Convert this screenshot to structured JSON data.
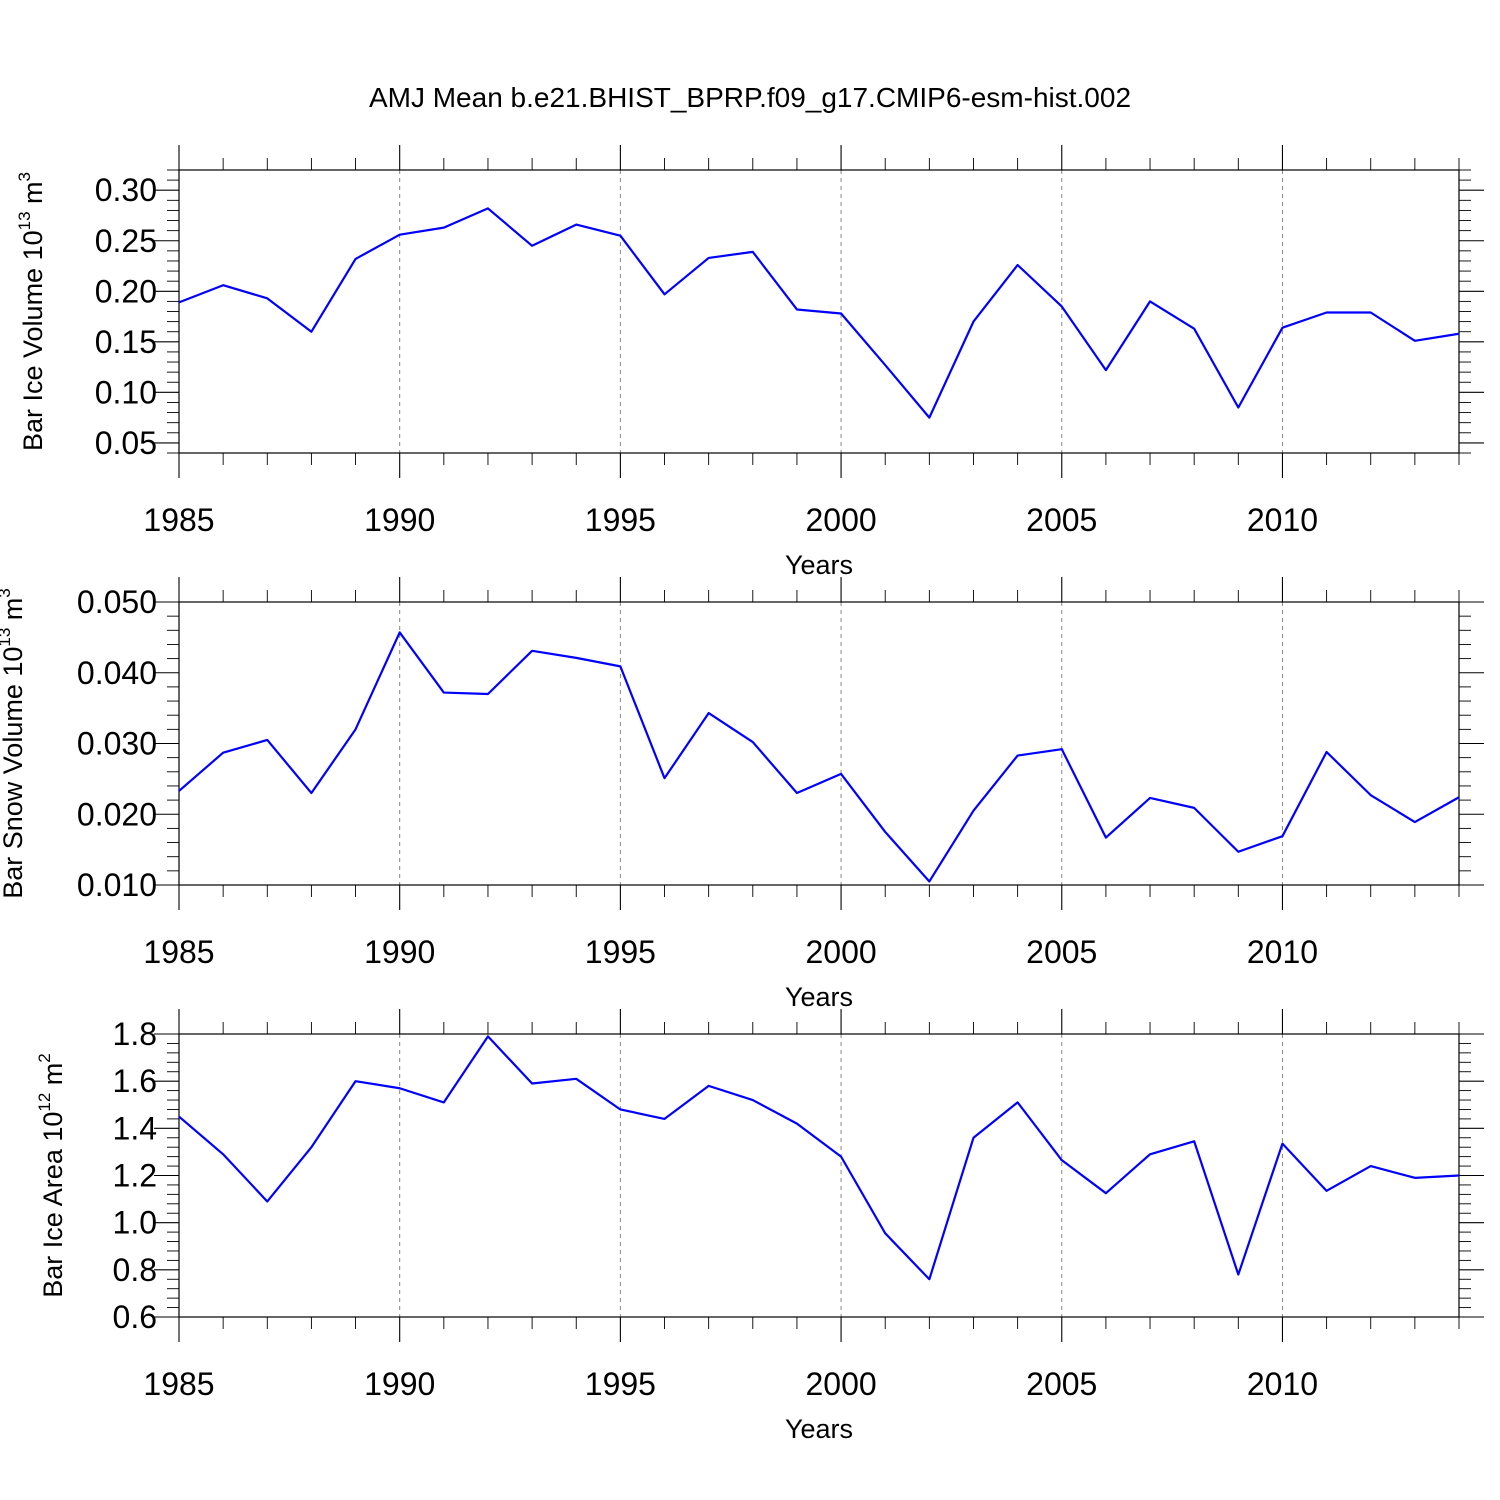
{
  "figure": {
    "title": "AMJ Mean b.e21.BHIST_BPRP.f09_g17.CMIP6-esm-hist.002"
  },
  "chart_data": [
    {
      "type": "line",
      "ylabel": "Bar Ice Volume 10",
      "ylabel_exp": "13",
      "ylabel_unit": " m",
      "ylabel_unit_exp": "3",
      "xlabel": "Years",
      "xlim": [
        1985,
        2014
      ],
      "ylim": [
        0.04,
        0.32
      ],
      "yticks": [
        "0.05",
        "0.10",
        "0.15",
        "0.20",
        "0.25",
        "0.30"
      ],
      "ytick_values": [
        0.05,
        0.1,
        0.15,
        0.2,
        0.25,
        0.3
      ],
      "xticks": [
        "1985",
        "1990",
        "1995",
        "2000",
        "2005",
        "2010"
      ],
      "xtick_values": [
        1985,
        1990,
        1995,
        2000,
        2005,
        2010
      ],
      "x": [
        1985,
        1986,
        1987,
        1988,
        1989,
        1990,
        1991,
        1992,
        1993,
        1994,
        1995,
        1996,
        1997,
        1998,
        1999,
        2000,
        2001,
        2002,
        2003,
        2004,
        2005,
        2006,
        2007,
        2008,
        2009,
        2010,
        2011,
        2012,
        2013,
        2014
      ],
      "series": [
        {
          "color": "#0000ff",
          "values": [
            0.189,
            0.206,
            0.193,
            0.16,
            0.232,
            0.256,
            0.263,
            0.282,
            0.245,
            0.266,
            0.255,
            0.197,
            0.233,
            0.239,
            0.182,
            0.178,
            0.127,
            0.075,
            0.17,
            0.226,
            0.185,
            0.122,
            0.19,
            0.163,
            0.085,
            0.164,
            0.179,
            0.179,
            0.151,
            0.158
          ]
        }
      ],
      "grid": "vertical dashed at major x ticks"
    },
    {
      "type": "line",
      "ylabel": "Bar Snow Volume 10",
      "ylabel_exp": "13",
      "ylabel_unit": " m",
      "ylabel_unit_exp": "3",
      "xlabel": "Years",
      "xlim": [
        1985,
        2014
      ],
      "ylim": [
        0.01,
        0.05
      ],
      "yticks": [
        "0.010",
        "0.020",
        "0.030",
        "0.040",
        "0.050"
      ],
      "ytick_values": [
        0.01,
        0.02,
        0.03,
        0.04,
        0.05
      ],
      "xticks": [
        "1985",
        "1990",
        "1995",
        "2000",
        "2005",
        "2010"
      ],
      "xtick_values": [
        1985,
        1990,
        1995,
        2000,
        2005,
        2010
      ],
      "x": [
        1985,
        1986,
        1987,
        1988,
        1989,
        1990,
        1991,
        1992,
        1993,
        1994,
        1995,
        1996,
        1997,
        1998,
        1999,
        2000,
        2001,
        2002,
        2003,
        2004,
        2005,
        2006,
        2007,
        2008,
        2009,
        2010,
        2011,
        2012,
        2013,
        2014
      ],
      "series": [
        {
          "color": "#0000ff",
          "values": [
            0.0233,
            0.0287,
            0.0305,
            0.023,
            0.032,
            0.0457,
            0.0372,
            0.037,
            0.0431,
            0.0421,
            0.0409,
            0.0251,
            0.0343,
            0.0302,
            0.023,
            0.0257,
            0.0175,
            0.0105,
            0.0205,
            0.0283,
            0.0292,
            0.0167,
            0.0223,
            0.0209,
            0.0147,
            0.0169,
            0.0288,
            0.0227,
            0.0189,
            0.0224
          ]
        }
      ],
      "grid": "vertical dashed at major x ticks"
    },
    {
      "type": "line",
      "ylabel": "Bar Ice Area 10",
      "ylabel_exp": "12",
      "ylabel_unit": " m",
      "ylabel_unit_exp": "2",
      "xlabel": "Years",
      "xlim": [
        1985,
        2014
      ],
      "ylim": [
        0.6,
        1.8
      ],
      "yticks": [
        "0.6",
        "0.8",
        "1.0",
        "1.2",
        "1.4",
        "1.6",
        "1.8"
      ],
      "ytick_values": [
        0.6,
        0.8,
        1.0,
        1.2,
        1.4,
        1.6,
        1.8
      ],
      "xticks": [
        "1985",
        "1990",
        "1995",
        "2000",
        "2005",
        "2010"
      ],
      "xtick_values": [
        1985,
        1990,
        1995,
        2000,
        2005,
        2010
      ],
      "x": [
        1985,
        1986,
        1987,
        1988,
        1989,
        1990,
        1991,
        1992,
        1993,
        1994,
        1995,
        1996,
        1997,
        1998,
        1999,
        2000,
        2001,
        2002,
        2003,
        2004,
        2005,
        2006,
        2007,
        2008,
        2009,
        2010,
        2011,
        2012,
        2013,
        2014
      ],
      "series": [
        {
          "color": "#0000ff",
          "values": [
            1.45,
            1.29,
            1.09,
            1.32,
            1.6,
            1.57,
            1.51,
            1.79,
            1.59,
            1.61,
            1.48,
            1.44,
            1.58,
            1.52,
            1.42,
            1.28,
            0.955,
            0.76,
            1.36,
            1.51,
            1.265,
            1.125,
            1.29,
            1.345,
            0.78,
            1.335,
            1.135,
            1.24,
            1.19,
            1.2
          ]
        }
      ],
      "grid": "vertical dashed at major x ticks"
    }
  ]
}
